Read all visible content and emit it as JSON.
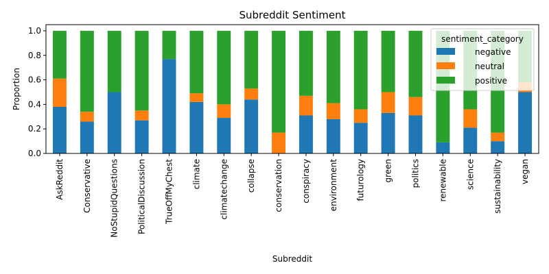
{
  "chart_data": {
    "type": "bar",
    "stacked": true,
    "title": "Subreddit Sentiment",
    "xlabel": "Subreddit",
    "ylabel": "Proportion",
    "ylim": [
      0,
      1.05
    ],
    "yticks": [
      "0.0",
      "0.2",
      "0.4",
      "0.6",
      "0.8",
      "1.0"
    ],
    "grid": false,
    "legend": {
      "title": "sentiment_category",
      "placement": "top-right"
    },
    "categories": [
      "AskReddit",
      "Conservative",
      "NoStupidQuestions",
      "PoliticalDiscussion",
      "TrueOffMyChest",
      "climate",
      "climatechange",
      "collapse",
      "conservation",
      "conspiracy",
      "environment",
      "futurology",
      "green",
      "politics",
      "renewable",
      "science",
      "sustainability",
      "vegan"
    ],
    "series": [
      {
        "name": "negative",
        "color": "#1f77b4",
        "values": [
          0.38,
          0.26,
          0.5,
          0.27,
          0.77,
          0.42,
          0.29,
          0.44,
          0.0,
          0.31,
          0.28,
          0.25,
          0.33,
          0.31,
          0.09,
          0.21,
          0.1,
          0.5
        ]
      },
      {
        "name": "neutral",
        "color": "#ff7f0e",
        "values": [
          0.23,
          0.08,
          0.0,
          0.08,
          0.0,
          0.07,
          0.11,
          0.09,
          0.17,
          0.16,
          0.13,
          0.11,
          0.17,
          0.15,
          0.0,
          0.15,
          0.07,
          0.08
        ]
      },
      {
        "name": "positive",
        "color": "#2ca02c",
        "values": [
          0.39,
          0.66,
          0.5,
          0.65,
          0.23,
          0.51,
          0.6,
          0.47,
          0.83,
          0.53,
          0.59,
          0.64,
          0.5,
          0.54,
          0.91,
          0.64,
          0.83,
          0.42
        ]
      }
    ]
  }
}
